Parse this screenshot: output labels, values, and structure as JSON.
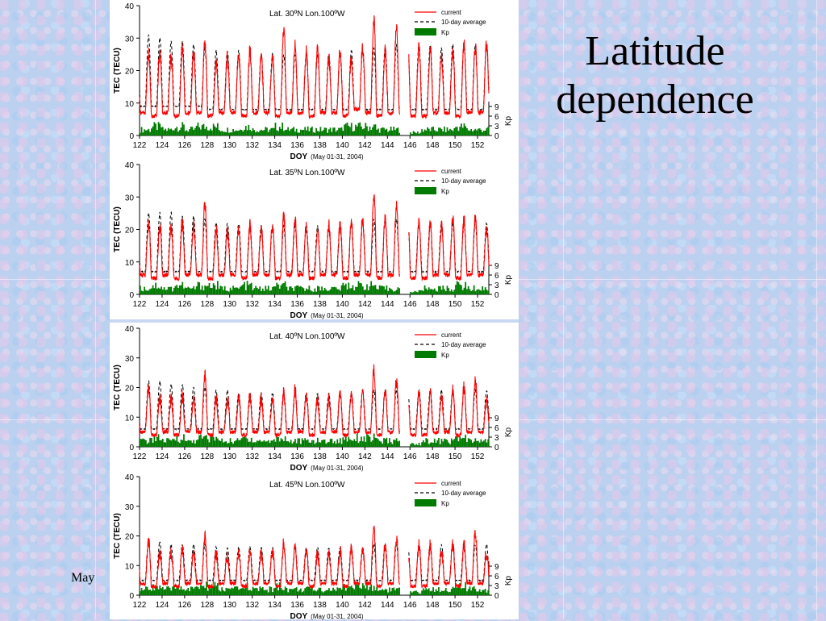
{
  "slide": {
    "title": "Latitude dependence",
    "footer": "May"
  },
  "colors": {
    "current": "#ff0000",
    "average": "#000000",
    "kp": "#007a00"
  },
  "chart_data": [
    {
      "type": "line",
      "title": "Lat. 30ºN  Lon.100ºW",
      "ylabel": "TEC (TECU)",
      "y2label": "Kp",
      "xlabel": "DOY",
      "xlabel_note": "(May 01-31, 2004)",
      "xlim": [
        122,
        153
      ],
      "ylim": [
        0,
        40
      ],
      "y2ticks": [
        0,
        3,
        6,
        9
      ],
      "xticks": [
        122,
        124,
        126,
        128,
        130,
        132,
        134,
        136,
        138,
        140,
        142,
        144,
        146,
        148,
        150,
        152
      ],
      "yticks": [
        0,
        10,
        20,
        30,
        40
      ],
      "legend": [
        "current",
        "10-day average",
        "Kp"
      ],
      "legend_position": "top-right",
      "data_gap_doy": [
        145.1,
        145.9
      ],
      "series": [
        {
          "name": "current",
          "daily_peak": [
            25,
            26,
            24,
            27,
            25,
            29,
            22,
            24,
            25,
            26,
            24,
            24,
            33,
            28,
            26,
            27,
            24,
            26,
            24,
            27,
            36,
            26,
            33,
            28,
            0,
            27,
            24,
            26,
            28,
            27,
            28
          ],
          "night_min": [
            7,
            6,
            7,
            6,
            7,
            7,
            6,
            7,
            7,
            6,
            7,
            7,
            6,
            7,
            7,
            6,
            7,
            7,
            6,
            8,
            7,
            6,
            7,
            7,
            0,
            6,
            7,
            7,
            6,
            7,
            7
          ]
        },
        {
          "name": "10-day average",
          "daily_peak": [
            31,
            30,
            29,
            29,
            28,
            27,
            26,
            26,
            26,
            25,
            25,
            25,
            25,
            25,
            25,
            25,
            25,
            25,
            26,
            26,
            27,
            27,
            28,
            28,
            0,
            28,
            27,
            28,
            28,
            28,
            28
          ],
          "night_min": [
            9,
            9,
            9,
            9,
            9,
            9,
            8,
            8,
            8,
            8,
            8,
            8,
            8,
            8,
            8,
            8,
            8,
            8,
            8,
            8,
            8,
            8,
            8,
            8,
            0,
            8,
            8,
            8,
            8,
            8,
            8
          ]
        },
        {
          "name": "Kp",
          "values_typical": [
            2,
            3,
            2,
            3,
            2,
            3,
            3,
            2,
            2,
            3,
            2,
            2,
            3,
            2,
            2,
            2,
            2,
            2,
            3,
            3,
            3,
            2,
            2,
            2,
            0,
            2,
            2,
            2,
            3,
            2,
            2
          ]
        }
      ]
    },
    {
      "type": "line",
      "title": "Lat. 35ºN  Lon.100ºW",
      "ylabel": "TEC (TECU)",
      "y2label": "Kp",
      "xlabel": "DOY",
      "xlabel_note": "(May 01-31, 2004)",
      "xlim": [
        122,
        153
      ],
      "ylim": [
        0,
        40
      ],
      "y2ticks": [
        0,
        3,
        6,
        9
      ],
      "xticks": [
        122,
        124,
        126,
        128,
        130,
        132,
        134,
        136,
        138,
        140,
        142,
        144,
        146,
        148,
        150,
        152
      ],
      "yticks": [
        0,
        10,
        20,
        30,
        40
      ],
      "legend": [
        "current",
        "10-day average",
        "Kp"
      ],
      "legend_position": "top-right",
      "data_gap_doy": [
        145.1,
        145.9
      ],
      "series": [
        {
          "name": "current",
          "daily_peak": [
            22,
            21,
            20,
            22,
            21,
            28,
            20,
            19,
            20,
            21,
            20,
            21,
            24,
            23,
            21,
            20,
            21,
            21,
            22,
            23,
            31,
            24,
            27,
            23,
            0,
            22,
            21,
            23,
            23,
            24,
            20
          ],
          "night_min": [
            6,
            5,
            6,
            5,
            6,
            6,
            5,
            6,
            6,
            5,
            6,
            6,
            5,
            6,
            6,
            5,
            6,
            6,
            5,
            6,
            6,
            5,
            6,
            6,
            0,
            5,
            6,
            6,
            5,
            6,
            6
          ]
        },
        {
          "name": "10-day average",
          "daily_peak": [
            25,
            25,
            25,
            24,
            24,
            23,
            22,
            22,
            22,
            21,
            21,
            21,
            21,
            21,
            21,
            21,
            21,
            21,
            22,
            22,
            23,
            23,
            23,
            23,
            0,
            22,
            22,
            22,
            22,
            22,
            22
          ],
          "night_min": [
            7,
            7,
            7,
            7,
            7,
            7,
            7,
            7,
            7,
            7,
            7,
            7,
            7,
            7,
            7,
            7,
            7,
            7,
            7,
            7,
            7,
            7,
            7,
            7,
            0,
            7,
            7,
            7,
            7,
            7,
            7
          ]
        },
        {
          "name": "Kp",
          "values_typical": [
            2,
            3,
            2,
            3,
            2,
            3,
            3,
            2,
            2,
            3,
            2,
            2,
            3,
            2,
            2,
            2,
            2,
            2,
            3,
            3,
            3,
            2,
            2,
            2,
            0,
            2,
            2,
            2,
            3,
            2,
            2
          ]
        }
      ]
    },
    {
      "type": "line",
      "title": "Lat. 40ºN  Lon.100ºW",
      "ylabel": "TEC (TECU)",
      "y2label": "Kp",
      "xlabel": "DOY",
      "xlabel_note": "(May 01-31, 2004)",
      "xlim": [
        122,
        153
      ],
      "ylim": [
        0,
        40
      ],
      "y2ticks": [
        0,
        3,
        6,
        9
      ],
      "xticks": [
        122,
        124,
        126,
        128,
        130,
        132,
        134,
        136,
        138,
        140,
        142,
        144,
        146,
        148,
        150,
        152
      ],
      "yticks": [
        0,
        10,
        20,
        30,
        40
      ],
      "legend": [
        "current",
        "10-day average",
        "Kp"
      ],
      "legend_position": "top-right",
      "data_gap_doy": [
        145.1,
        145.9
      ],
      "series": [
        {
          "name": "current",
          "daily_peak": [
            20,
            16,
            16,
            17,
            16,
            24,
            16,
            16,
            16,
            17,
            16,
            16,
            18,
            19,
            17,
            16,
            16,
            17,
            18,
            18,
            26,
            19,
            22,
            18,
            0,
            18,
            17,
            19,
            20,
            22,
            16
          ],
          "night_min": [
            5,
            4,
            5,
            4,
            5,
            5,
            4,
            5,
            5,
            4,
            5,
            5,
            4,
            5,
            5,
            4,
            5,
            5,
            4,
            5,
            5,
            4,
            5,
            5,
            0,
            4,
            5,
            5,
            4,
            5,
            5
          ]
        },
        {
          "name": "10-day average",
          "daily_peak": [
            22,
            22,
            21,
            21,
            20,
            20,
            19,
            19,
            18,
            18,
            18,
            18,
            18,
            18,
            18,
            18,
            18,
            18,
            18,
            19,
            19,
            19,
            19,
            19,
            0,
            19,
            19,
            19,
            19,
            19,
            19
          ],
          "night_min": [
            6,
            6,
            6,
            6,
            6,
            6,
            6,
            6,
            6,
            6,
            6,
            6,
            6,
            6,
            6,
            6,
            6,
            6,
            6,
            6,
            6,
            6,
            6,
            6,
            0,
            6,
            6,
            6,
            6,
            6,
            6
          ]
        },
        {
          "name": "Kp",
          "values_typical": [
            2,
            3,
            2,
            3,
            2,
            3,
            3,
            2,
            2,
            3,
            2,
            2,
            3,
            2,
            2,
            2,
            2,
            2,
            3,
            3,
            3,
            2,
            2,
            2,
            0,
            2,
            2,
            2,
            3,
            2,
            2
          ]
        }
      ]
    },
    {
      "type": "line",
      "title": "Lat. 45ºN  Lon.100ºW",
      "ylabel": "TEC (TECU)",
      "y2label": "Kp",
      "xlabel": "DOY",
      "xlabel_note": "(May 01-31, 2004)",
      "xlim": [
        122,
        153
      ],
      "ylim": [
        0,
        40
      ],
      "y2ticks": [
        0,
        3,
        6,
        9
      ],
      "xticks": [
        122,
        124,
        126,
        128,
        130,
        132,
        134,
        136,
        138,
        140,
        142,
        144,
        146,
        148,
        150,
        152
      ],
      "yticks": [
        0,
        10,
        20,
        30,
        40
      ],
      "legend": [
        "current",
        "10-day average",
        "Kp"
      ],
      "legend_position": "top-right",
      "data_gap_doy": [
        145.1,
        145.9
      ],
      "series": [
        {
          "name": "current",
          "daily_peak": [
            18,
            14,
            14,
            15,
            14,
            20,
            14,
            13,
            14,
            14,
            14,
            15,
            18,
            16,
            15,
            14,
            14,
            15,
            16,
            16,
            22,
            17,
            19,
            16,
            0,
            17,
            15,
            17,
            17,
            21,
            14
          ],
          "night_min": [
            4,
            3,
            4,
            3,
            4,
            4,
            3,
            4,
            4,
            3,
            4,
            4,
            3,
            4,
            4,
            3,
            4,
            4,
            3,
            4,
            4,
            3,
            4,
            4,
            0,
            3,
            4,
            4,
            3,
            4,
            4
          ]
        },
        {
          "name": "10-day average",
          "daily_peak": [
            18,
            18,
            17,
            17,
            17,
            17,
            16,
            16,
            16,
            16,
            16,
            16,
            16,
            16,
            16,
            16,
            16,
            16,
            16,
            16,
            17,
            17,
            17,
            17,
            0,
            17,
            17,
            17,
            17,
            17,
            17
          ],
          "night_min": [
            5,
            5,
            5,
            5,
            5,
            5,
            5,
            5,
            5,
            5,
            5,
            5,
            5,
            5,
            5,
            5,
            5,
            5,
            5,
            5,
            5,
            5,
            5,
            5,
            0,
            5,
            5,
            5,
            5,
            5,
            5
          ]
        },
        {
          "name": "Kp",
          "values_typical": [
            2,
            3,
            2,
            3,
            2,
            3,
            3,
            2,
            2,
            3,
            2,
            2,
            3,
            2,
            2,
            2,
            2,
            2,
            3,
            3,
            3,
            2,
            2,
            2,
            0,
            2,
            2,
            2,
            3,
            2,
            2
          ]
        }
      ]
    }
  ]
}
